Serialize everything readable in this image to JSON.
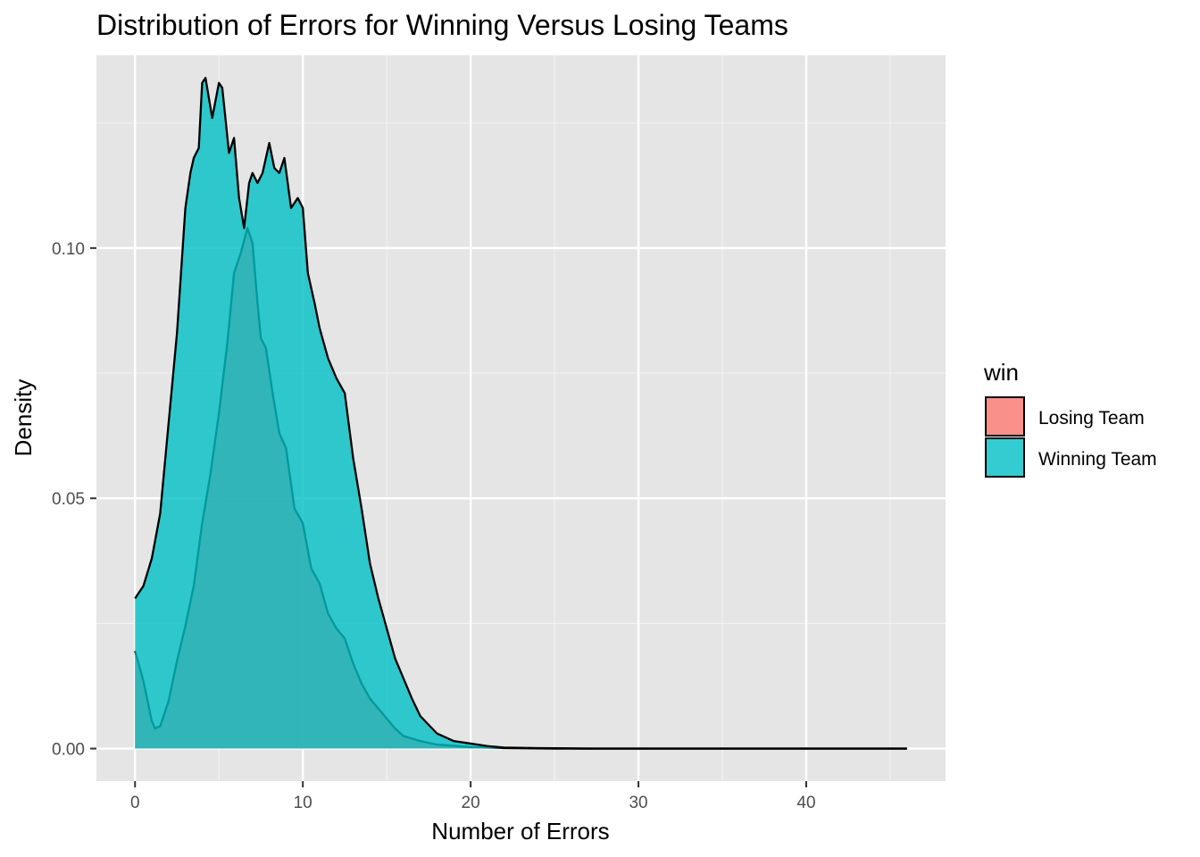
{
  "chart_data": {
    "type": "area",
    "title": "Distribution of Errors for Winning Versus Losing Teams",
    "xlabel": "Number of Errors",
    "ylabel": "Density",
    "xlim": [
      -2.3,
      48.3
    ],
    "ylim": [
      -0.0065,
      0.1385
    ],
    "x_ticks": [
      0,
      10,
      20,
      30,
      40
    ],
    "y_ticks": [
      0.0,
      0.05,
      0.1
    ],
    "x_tick_labels": [
      "0",
      "10",
      "20",
      "30",
      "40"
    ],
    "y_tick_labels": [
      "0.00",
      "0.05",
      "0.10"
    ],
    "grid": true,
    "background": "#e5e5e5",
    "legend": {
      "title": "win",
      "position": "right",
      "entries": [
        "Losing Team",
        "Winning Team"
      ]
    },
    "series": [
      {
        "name": "Losing Team",
        "color": "#f8766d",
        "alpha": 0.8,
        "points": [
          [
            0,
            0.0195
          ],
          [
            0.5,
            0.0135
          ],
          [
            1,
            0.0055
          ],
          [
            1.2,
            0.004
          ],
          [
            1.5,
            0.0045
          ],
          [
            2,
            0.0095
          ],
          [
            2.5,
            0.0175
          ],
          [
            3,
            0.0245
          ],
          [
            3.5,
            0.0325
          ],
          [
            4,
            0.045
          ],
          [
            4.5,
            0.055
          ],
          [
            5,
            0.067
          ],
          [
            5.5,
            0.081
          ],
          [
            5.9,
            0.095
          ],
          [
            6.3,
            0.099
          ],
          [
            6.7,
            0.104
          ],
          [
            7,
            0.101
          ],
          [
            7.3,
            0.089
          ],
          [
            7.5,
            0.082
          ],
          [
            7.8,
            0.08
          ],
          [
            8.2,
            0.071
          ],
          [
            8.6,
            0.063
          ],
          [
            9,
            0.06
          ],
          [
            9.5,
            0.048
          ],
          [
            10,
            0.045
          ],
          [
            10.5,
            0.036
          ],
          [
            11,
            0.033
          ],
          [
            11.5,
            0.027
          ],
          [
            12,
            0.024
          ],
          [
            12.5,
            0.022
          ],
          [
            13,
            0.017
          ],
          [
            13.5,
            0.013
          ],
          [
            14,
            0.01
          ],
          [
            14.5,
            0.008
          ],
          [
            15,
            0.006
          ],
          [
            15.5,
            0.004
          ],
          [
            16,
            0.0025
          ],
          [
            17,
            0.0015
          ],
          [
            18,
            0.0008
          ],
          [
            20,
            0.0003
          ],
          [
            22,
            0.0001
          ],
          [
            25,
            0.0
          ],
          [
            30,
            0.0
          ],
          [
            35,
            0.0
          ],
          [
            40,
            0.0
          ],
          [
            46,
            0.0
          ]
        ]
      },
      {
        "name": "Winning Team",
        "color": "#00bfc4",
        "alpha": 0.8,
        "points": [
          [
            0,
            0.03
          ],
          [
            0.5,
            0.0325
          ],
          [
            1,
            0.038
          ],
          [
            1.5,
            0.047
          ],
          [
            2,
            0.065
          ],
          [
            2.5,
            0.083
          ],
          [
            3,
            0.108
          ],
          [
            3.3,
            0.115
          ],
          [
            3.5,
            0.118
          ],
          [
            3.8,
            0.12
          ],
          [
            4,
            0.133
          ],
          [
            4.2,
            0.134
          ],
          [
            4.6,
            0.126
          ],
          [
            5,
            0.133
          ],
          [
            5.2,
            0.132
          ],
          [
            5.6,
            0.119
          ],
          [
            5.9,
            0.122
          ],
          [
            6.2,
            0.11
          ],
          [
            6.5,
            0.104
          ],
          [
            6.8,
            0.113
          ],
          [
            7,
            0.115
          ],
          [
            7.3,
            0.113
          ],
          [
            7.6,
            0.115
          ],
          [
            8,
            0.121
          ],
          [
            8.3,
            0.116
          ],
          [
            8.6,
            0.115
          ],
          [
            8.9,
            0.118
          ],
          [
            9.3,
            0.108
          ],
          [
            9.7,
            0.11
          ],
          [
            10,
            0.108
          ],
          [
            10.3,
            0.095
          ],
          [
            10.7,
            0.089
          ],
          [
            11,
            0.084
          ],
          [
            11.5,
            0.078
          ],
          [
            12,
            0.074
          ],
          [
            12.5,
            0.071
          ],
          [
            13,
            0.058
          ],
          [
            13.5,
            0.048
          ],
          [
            14,
            0.037
          ],
          [
            14.5,
            0.03
          ],
          [
            15,
            0.024
          ],
          [
            15.5,
            0.018
          ],
          [
            16,
            0.014
          ],
          [
            16.5,
            0.01
          ],
          [
            17,
            0.0065
          ],
          [
            18,
            0.003
          ],
          [
            19,
            0.0015
          ],
          [
            20,
            0.001
          ],
          [
            21,
            0.0005
          ],
          [
            22,
            0.0002
          ],
          [
            24,
            0.0001
          ],
          [
            27,
            0.0
          ],
          [
            30,
            0.0
          ],
          [
            35,
            0.0
          ],
          [
            40,
            0.0
          ],
          [
            46,
            0.0
          ]
        ]
      }
    ]
  }
}
